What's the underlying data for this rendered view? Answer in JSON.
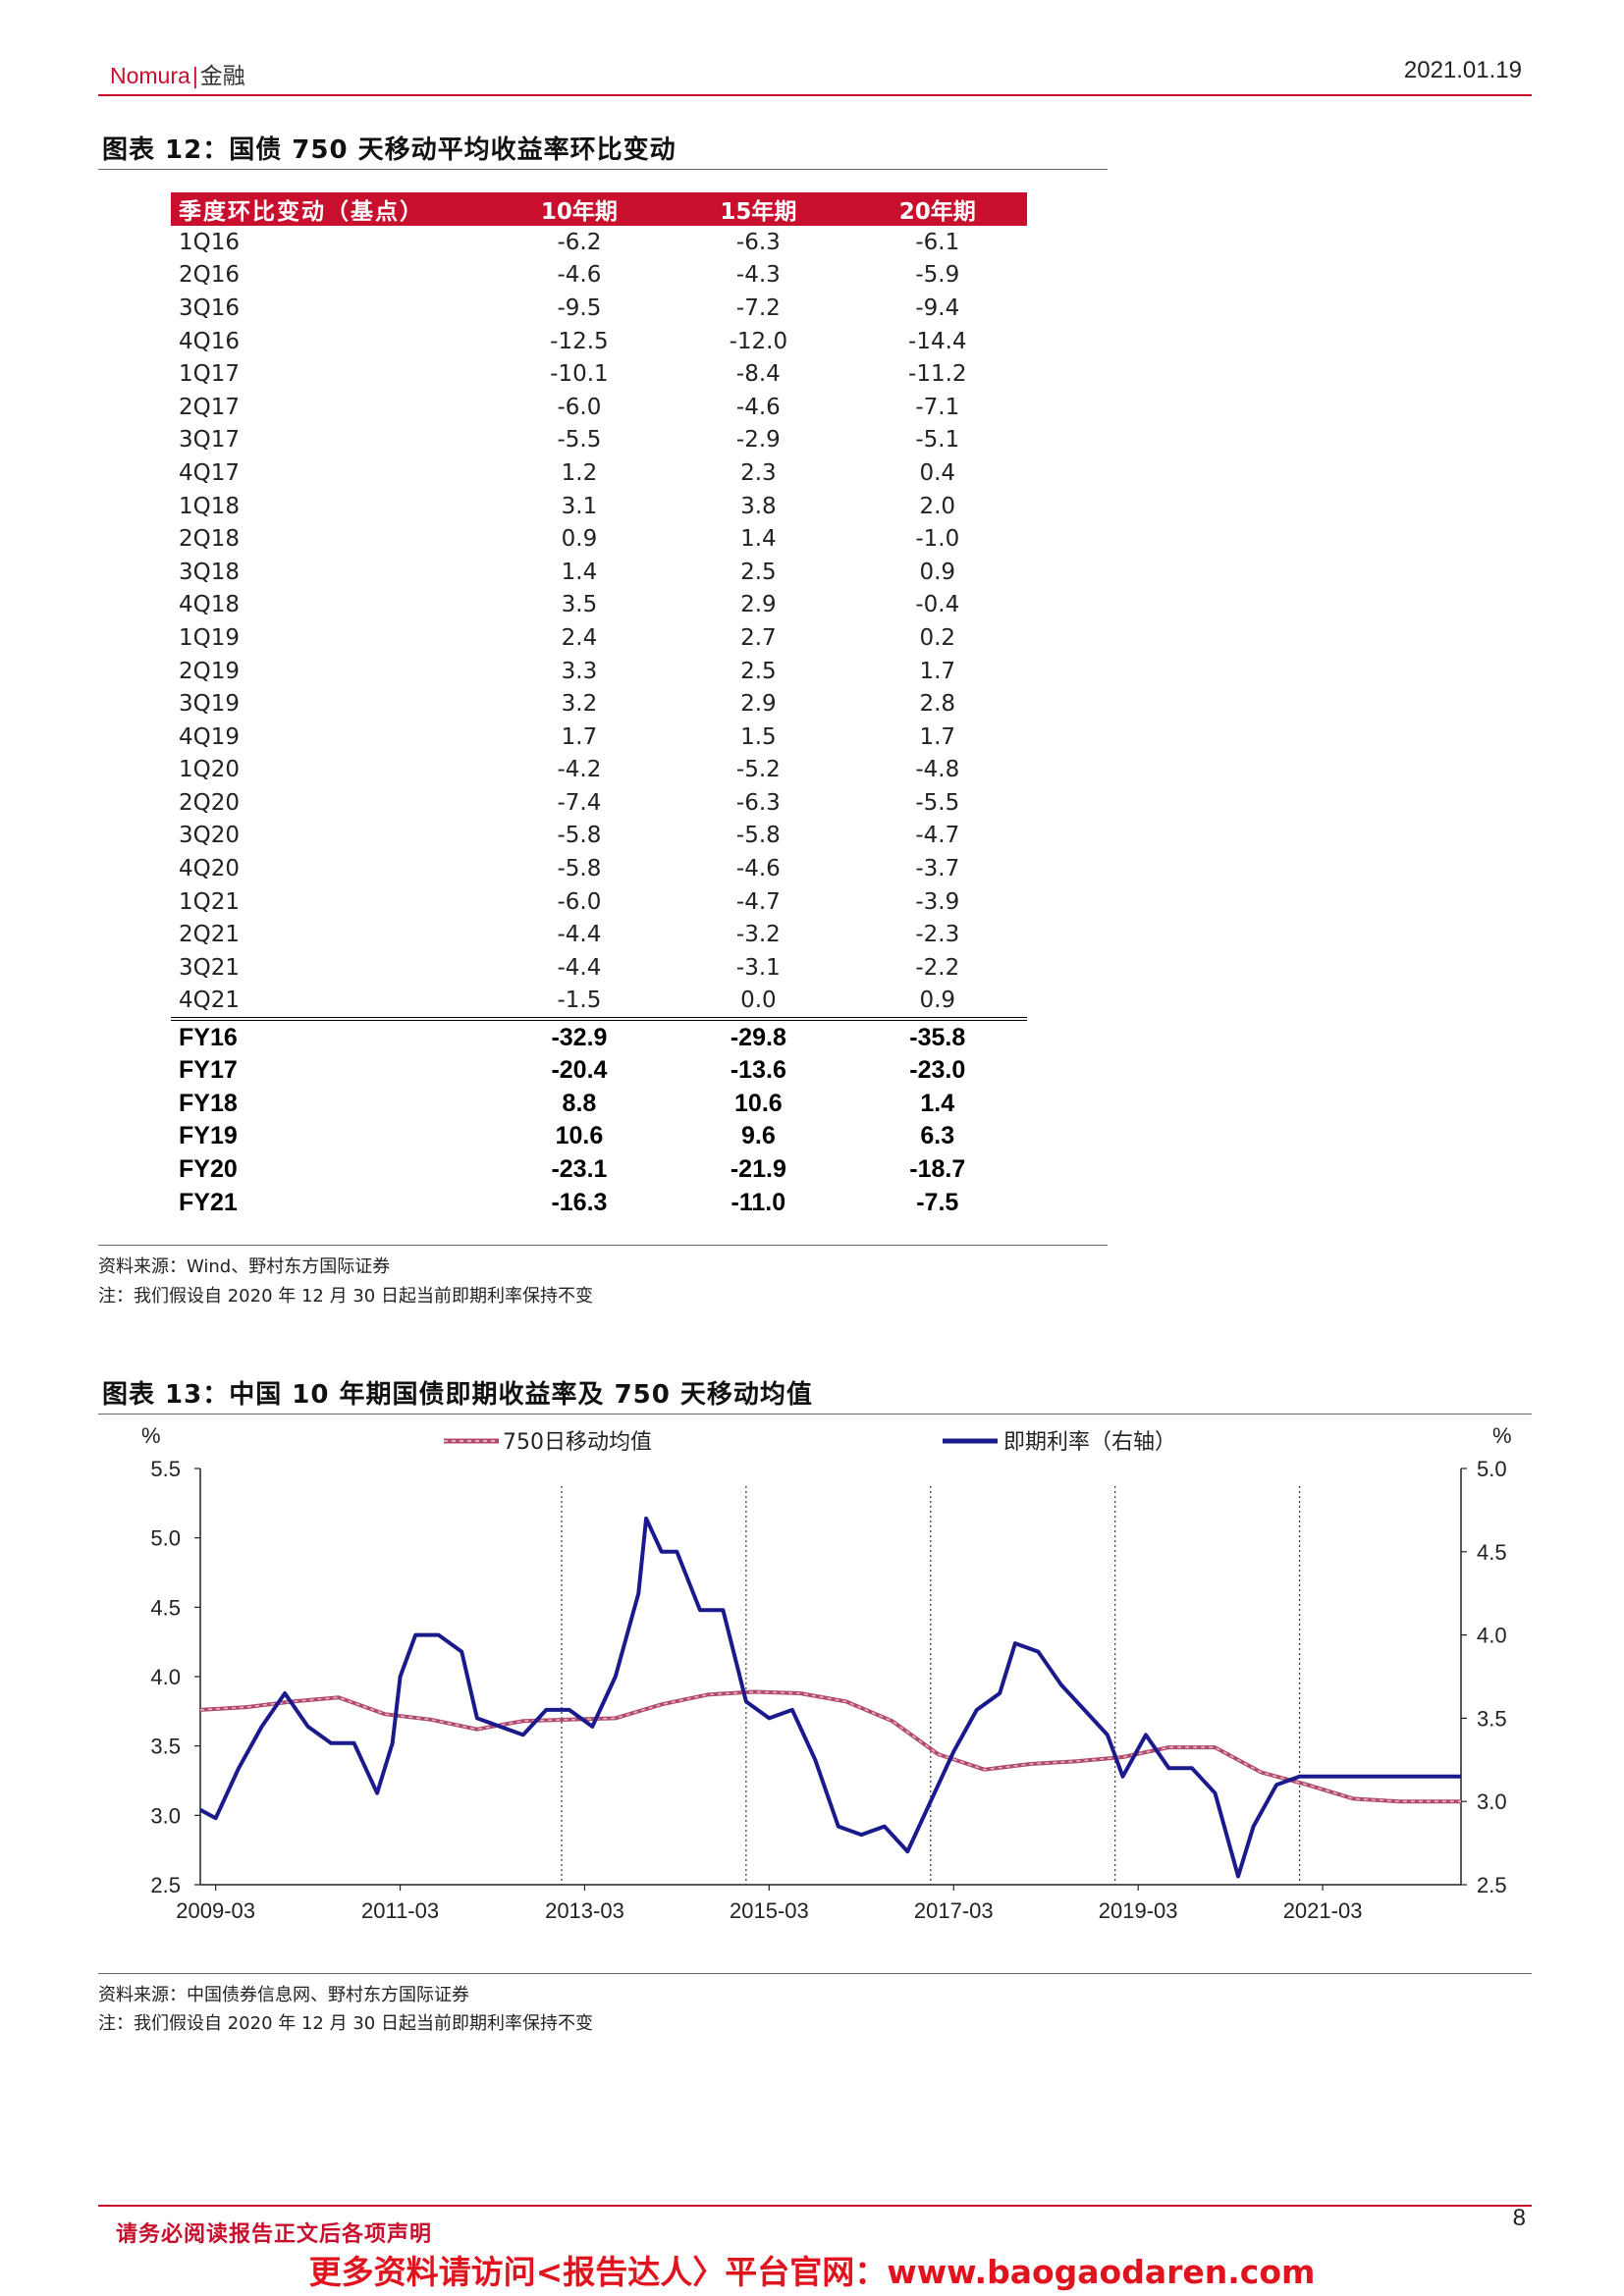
{
  "header": {
    "brand": "Nomura",
    "section": "金融",
    "date": "2021.01.19"
  },
  "table_figure": {
    "title": "图表 12：国债 750 天移动平均收益率环比变动",
    "columns": [
      "季度环比变动（基点）",
      "10年期",
      "15年期",
      "20年期"
    ],
    "rows": [
      [
        "1Q16",
        "-6.2",
        "-6.3",
        "-6.1"
      ],
      [
        "2Q16",
        "-4.6",
        "-4.3",
        "-5.9"
      ],
      [
        "3Q16",
        "-9.5",
        "-7.2",
        "-9.4"
      ],
      [
        "4Q16",
        "-12.5",
        "-12.0",
        "-14.4"
      ],
      [
        "1Q17",
        "-10.1",
        "-8.4",
        "-11.2"
      ],
      [
        "2Q17",
        "-6.0",
        "-4.6",
        "-7.1"
      ],
      [
        "3Q17",
        "-5.5",
        "-2.9",
        "-5.1"
      ],
      [
        "4Q17",
        "1.2",
        "2.3",
        "0.4"
      ],
      [
        "1Q18",
        "3.1",
        "3.8",
        "2.0"
      ],
      [
        "2Q18",
        "0.9",
        "1.4",
        "-1.0"
      ],
      [
        "3Q18",
        "1.4",
        "2.5",
        "0.9"
      ],
      [
        "4Q18",
        "3.5",
        "2.9",
        "-0.4"
      ],
      [
        "1Q19",
        "2.4",
        "2.7",
        "0.2"
      ],
      [
        "2Q19",
        "3.3",
        "2.5",
        "1.7"
      ],
      [
        "3Q19",
        "3.2",
        "2.9",
        "2.8"
      ],
      [
        "4Q19",
        "1.7",
        "1.5",
        "1.7"
      ],
      [
        "1Q20",
        "-4.2",
        "-5.2",
        "-4.8"
      ],
      [
        "2Q20",
        "-7.4",
        "-6.3",
        "-5.5"
      ],
      [
        "3Q20",
        "-5.8",
        "-5.8",
        "-4.7"
      ],
      [
        "4Q20",
        "-5.8",
        "-4.6",
        "-3.7"
      ],
      [
        "1Q21",
        "-6.0",
        "-4.7",
        "-3.9"
      ],
      [
        "2Q21",
        "-4.4",
        "-3.2",
        "-2.3"
      ],
      [
        "3Q21",
        "-4.4",
        "-3.1",
        "-2.2"
      ],
      [
        "4Q21",
        "-1.5",
        "0.0",
        "0.9"
      ]
    ],
    "fy_rows": [
      [
        "FY16",
        "-32.9",
        "-29.8",
        "-35.8"
      ],
      [
        "FY17",
        "-20.4",
        "-13.6",
        "-23.0"
      ],
      [
        "FY18",
        "8.8",
        "10.6",
        "1.4"
      ],
      [
        "FY19",
        "10.6",
        "9.6",
        "6.3"
      ],
      [
        "FY20",
        "-23.1",
        "-21.9",
        "-18.7"
      ],
      [
        "FY21",
        "-16.3",
        "-11.0",
        "-7.5"
      ]
    ],
    "source": "资料来源：Wind、野村东方国际证券",
    "note": "注：我们假设自 2020 年 12 月 30 日起当前即期利率保持不变"
  },
  "chart_figure": {
    "title": "图表 13：中国 10 年期国债即期收益率及 750 天移动均值",
    "source": "资料来源：中国债券信息网、野村东方国际证券",
    "note": "注：我们假设自 2020 年 12 月 30 日起当前即期利率保持不变"
  },
  "chart_data": {
    "type": "line",
    "x_ticks": [
      "2009-03",
      "2011-03",
      "2013-03",
      "2015-03",
      "2017-03",
      "2019-03",
      "2021-03"
    ],
    "left_axis": {
      "unit": "%",
      "ticks": [
        "5.5",
        "5.0",
        "4.5",
        "4.0",
        "3.5",
        "3.0",
        "2.5"
      ],
      "ylim": [
        2.5,
        5.5
      ]
    },
    "right_axis": {
      "unit": "%",
      "ticks": [
        "5.0",
        "4.5",
        "4.0",
        "3.5",
        "3.0",
        "2.5"
      ],
      "ylim": [
        2.5,
        5.0
      ]
    },
    "xlim": [
      "2009-01",
      "2022-09"
    ],
    "vertical_dashed_lines": [
      "2012-12",
      "2014-12",
      "2016-12",
      "2018-12",
      "2020-12"
    ],
    "legend_position": "top",
    "series": [
      {
        "name": "750日移动均值",
        "axis": "left",
        "color": "#c45a7a",
        "style": "dashed-pink",
        "points": [
          [
            "2009-01",
            3.76
          ],
          [
            "2009-07",
            3.78
          ],
          [
            "2010-01",
            3.82
          ],
          [
            "2010-07",
            3.85
          ],
          [
            "2011-01",
            3.73
          ],
          [
            "2011-07",
            3.69
          ],
          [
            "2012-01",
            3.62
          ],
          [
            "2012-07",
            3.68
          ],
          [
            "2013-01",
            3.69
          ],
          [
            "2013-07",
            3.7
          ],
          [
            "2014-01",
            3.8
          ],
          [
            "2014-07",
            3.87
          ],
          [
            "2015-01",
            3.89
          ],
          [
            "2015-07",
            3.88
          ],
          [
            "2016-01",
            3.82
          ],
          [
            "2016-07",
            3.68
          ],
          [
            "2017-01",
            3.44
          ],
          [
            "2017-07",
            3.33
          ],
          [
            "2018-01",
            3.37
          ],
          [
            "2018-07",
            3.39
          ],
          [
            "2019-01",
            3.42
          ],
          [
            "2019-07",
            3.49
          ],
          [
            "2020-01",
            3.49
          ],
          [
            "2020-07",
            3.31
          ],
          [
            "2021-01",
            3.22
          ],
          [
            "2021-07",
            3.12
          ],
          [
            "2022-01",
            3.1
          ],
          [
            "2022-09",
            3.1
          ]
        ]
      },
      {
        "name": "即期利率（右轴）",
        "axis": "right",
        "color": "#1a1a8c",
        "style": "solid",
        "points": [
          [
            "2009-01",
            2.95
          ],
          [
            "2009-03",
            2.9
          ],
          [
            "2009-06",
            3.2
          ],
          [
            "2009-09",
            3.45
          ],
          [
            "2009-12",
            3.65
          ],
          [
            "2010-03",
            3.45
          ],
          [
            "2010-06",
            3.35
          ],
          [
            "2010-09",
            3.35
          ],
          [
            "2010-12",
            3.05
          ],
          [
            "2011-02",
            3.35
          ],
          [
            "2011-03",
            3.75
          ],
          [
            "2011-05",
            4.0
          ],
          [
            "2011-08",
            4.0
          ],
          [
            "2011-11",
            3.9
          ],
          [
            "2012-01",
            3.5
          ],
          [
            "2012-04",
            3.45
          ],
          [
            "2012-07",
            3.4
          ],
          [
            "2012-10",
            3.55
          ],
          [
            "2013-01",
            3.55
          ],
          [
            "2013-04",
            3.45
          ],
          [
            "2013-07",
            3.75
          ],
          [
            "2013-10",
            4.25
          ],
          [
            "2013-11",
            4.7
          ],
          [
            "2014-01",
            4.5
          ],
          [
            "2014-03",
            4.5
          ],
          [
            "2014-06",
            4.15
          ],
          [
            "2014-09",
            4.15
          ],
          [
            "2014-12",
            3.6
          ],
          [
            "2015-03",
            3.5
          ],
          [
            "2015-06",
            3.55
          ],
          [
            "2015-09",
            3.25
          ],
          [
            "2015-12",
            2.85
          ],
          [
            "2016-03",
            2.8
          ],
          [
            "2016-06",
            2.85
          ],
          [
            "2016-09",
            2.7
          ],
          [
            "2016-12",
            3.0
          ],
          [
            "2017-03",
            3.3
          ],
          [
            "2017-06",
            3.55
          ],
          [
            "2017-09",
            3.65
          ],
          [
            "2017-11",
            3.95
          ],
          [
            "2018-02",
            3.9
          ],
          [
            "2018-05",
            3.7
          ],
          [
            "2018-08",
            3.55
          ],
          [
            "2018-11",
            3.4
          ],
          [
            "2019-01",
            3.15
          ],
          [
            "2019-04",
            3.4
          ],
          [
            "2019-07",
            3.2
          ],
          [
            "2019-10",
            3.2
          ],
          [
            "2020-01",
            3.05
          ],
          [
            "2020-04",
            2.55
          ],
          [
            "2020-06",
            2.85
          ],
          [
            "2020-09",
            3.1
          ],
          [
            "2020-12",
            3.15
          ],
          [
            "2022-09",
            3.15
          ]
        ]
      }
    ]
  },
  "footer": {
    "disclaimer": "请务必阅读报告正文后各项声明",
    "page": "8",
    "watermark": "更多资料请访问<报告达人〉平台官网：www.baogaodaren.com"
  }
}
